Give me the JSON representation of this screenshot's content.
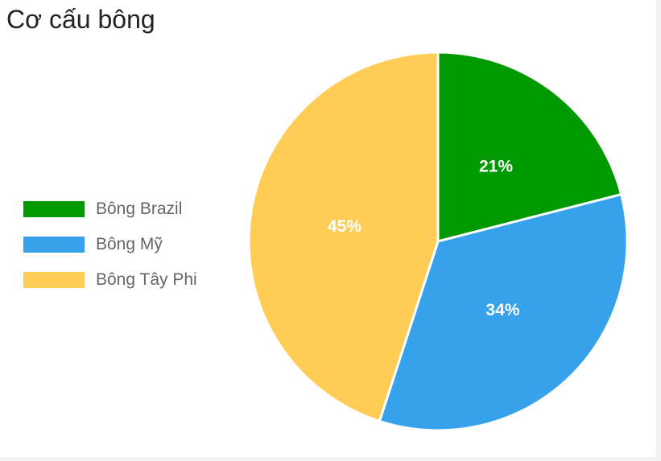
{
  "chart_data": {
    "type": "pie",
    "title": "Cơ cấu bông",
    "categories": [
      "Bông Brazil",
      "Bông Mỹ",
      "Bông Tây Phi"
    ],
    "values": [
      21,
      34,
      45
    ],
    "value_labels": [
      "21%",
      "34%",
      "45%"
    ],
    "colors": [
      "#019901",
      "#36a2eb",
      "#ffcd56"
    ],
    "legend_position": "left"
  }
}
